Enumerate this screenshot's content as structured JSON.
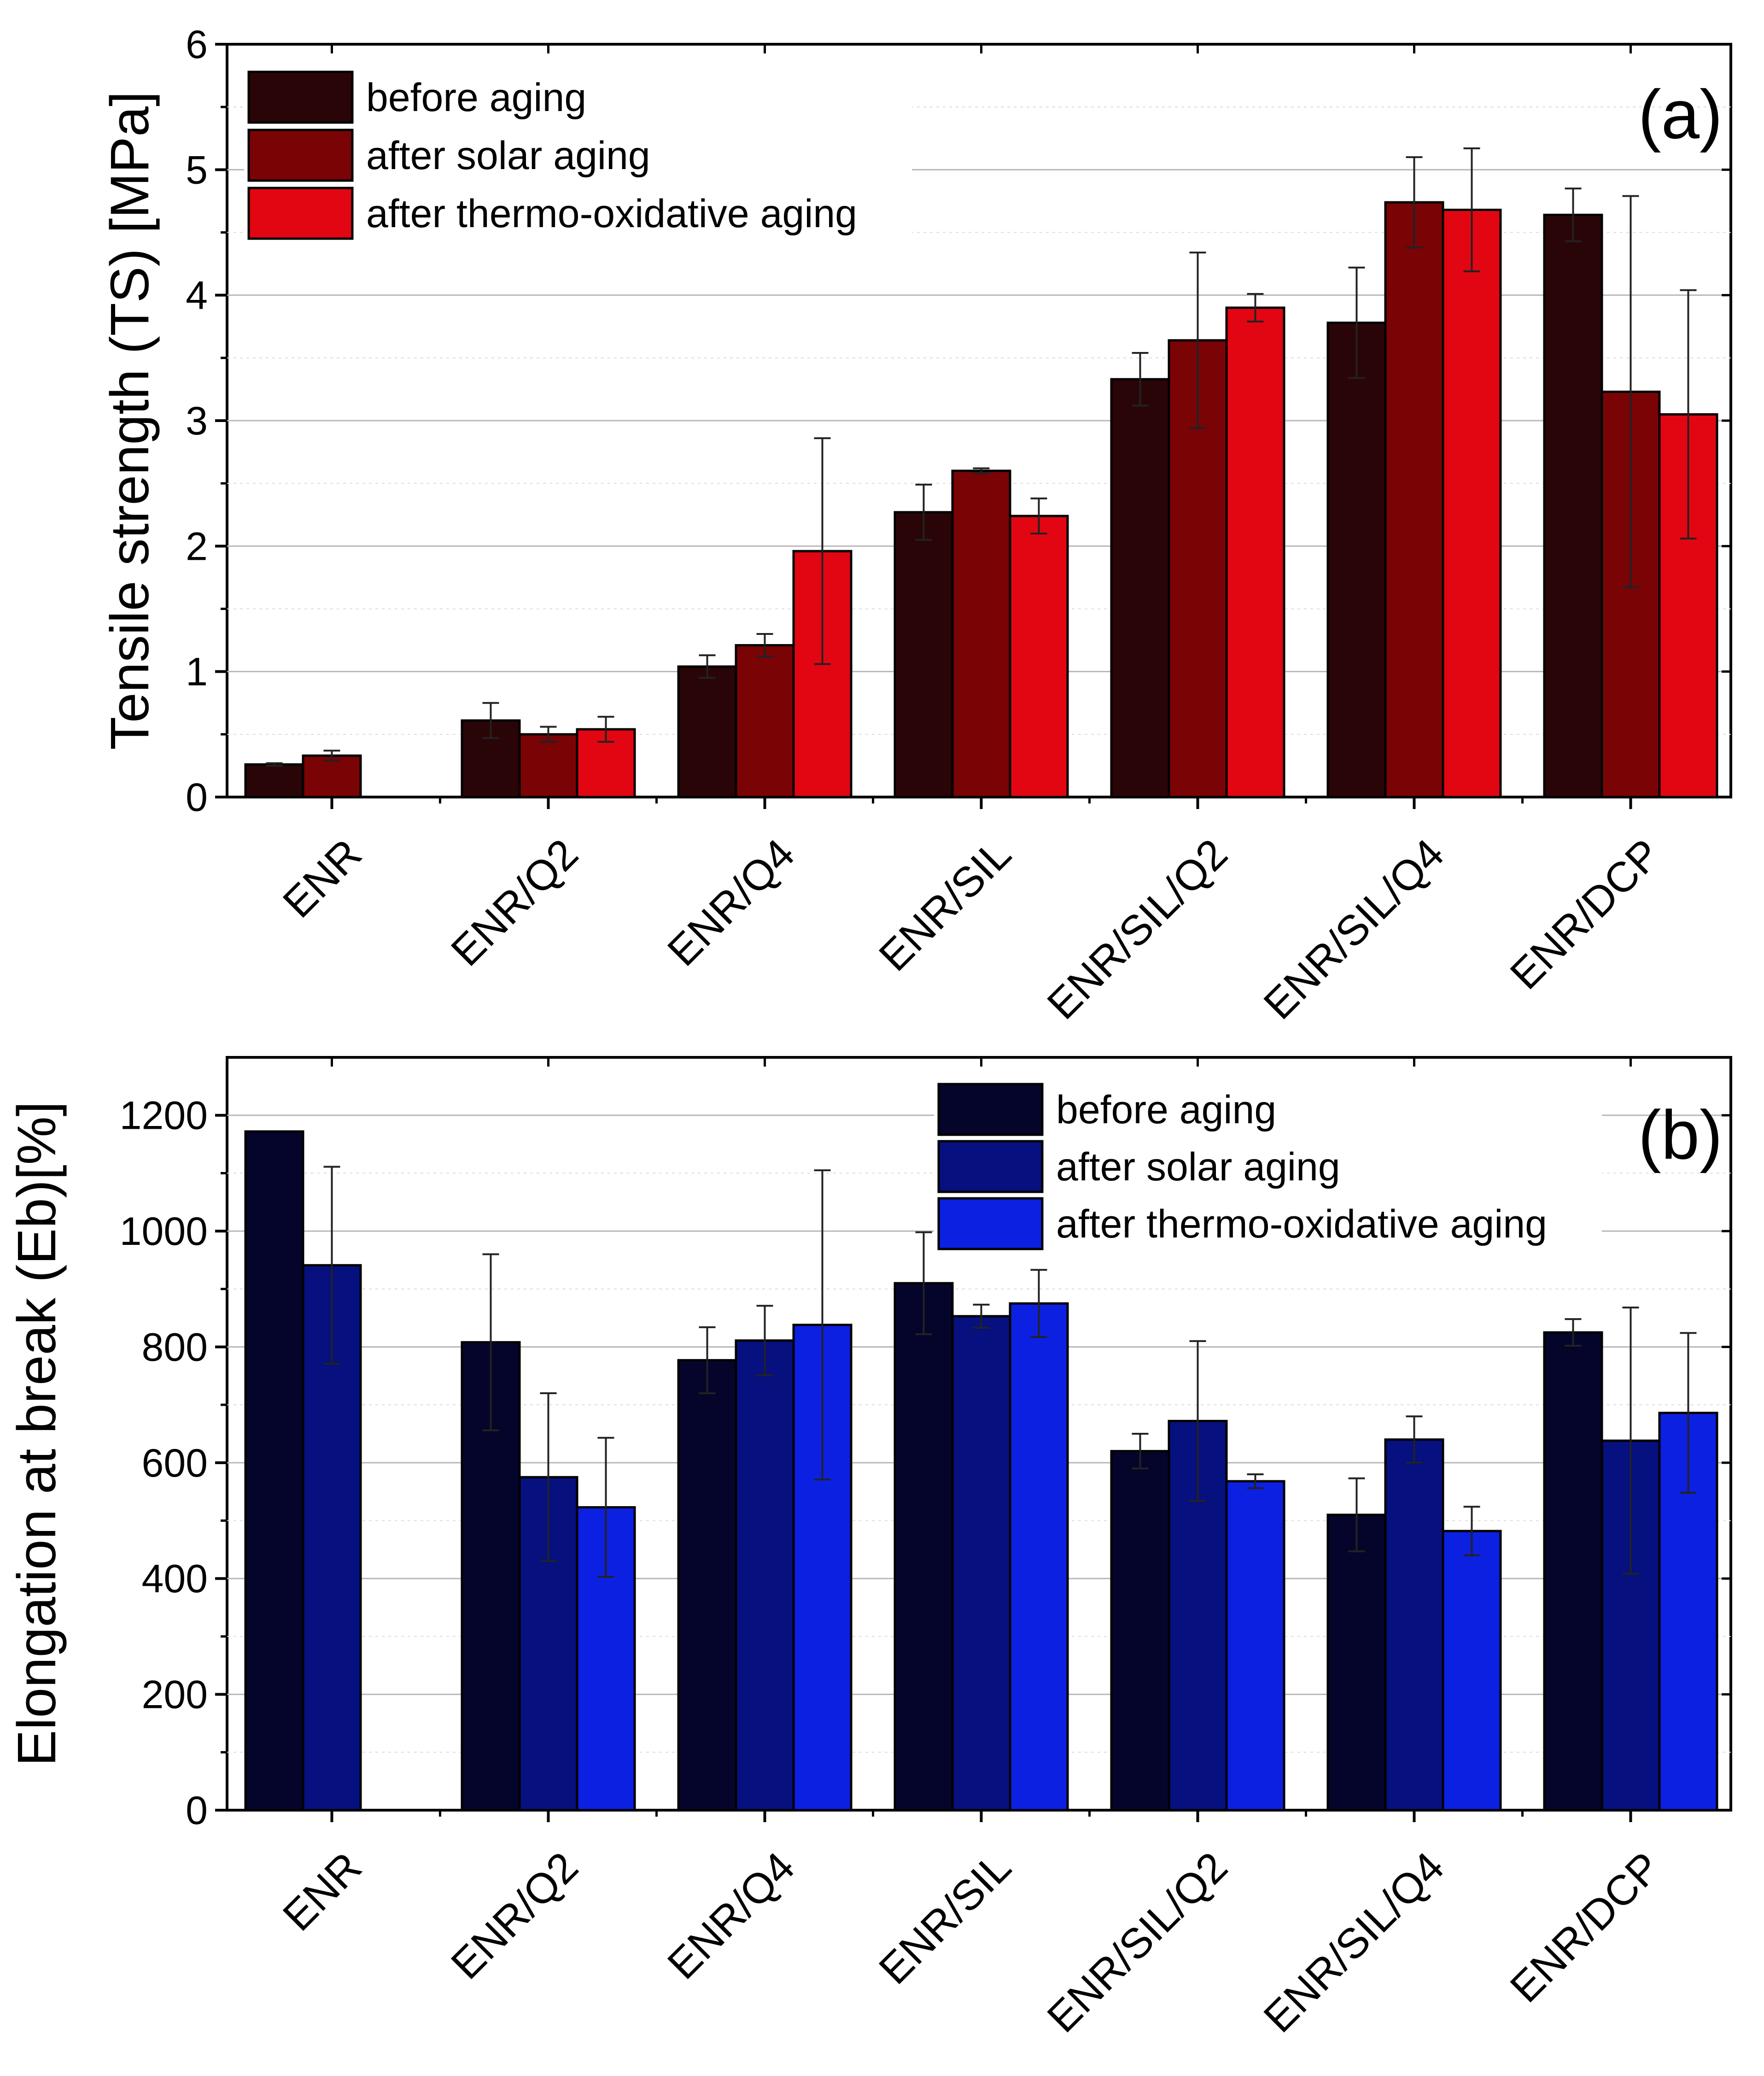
{
  "chart_data": [
    {
      "panel": "a",
      "type": "bar",
      "panel_label": "(a)",
      "ylabel": "Tensile strength (TS) [MPa]",
      "xlabel": "",
      "ylim": [
        0,
        6
      ],
      "yticks": [
        "0",
        "1",
        "2",
        "3",
        "4",
        "5",
        "6"
      ],
      "categories": [
        "ENR",
        "ENR/Q2",
        "ENR/Q4",
        "ENR/SIL",
        "ENR/SIL/Q2",
        "ENR/SIL/Q4",
        "ENR/DCP"
      ],
      "legend_position": "top-left",
      "series": [
        {
          "name": "before aging",
          "color": "#2a0507",
          "values": [
            0.26,
            0.61,
            1.04,
            2.27,
            3.33,
            3.78,
            4.64
          ],
          "errors": [
            0.01,
            0.14,
            0.09,
            0.22,
            0.21,
            0.44,
            0.21
          ]
        },
        {
          "name": "after solar aging",
          "color": "#7a0306",
          "values": [
            0.33,
            0.5,
            1.21,
            2.6,
            3.64,
            4.74,
            3.23
          ],
          "errors": [
            0.04,
            0.06,
            0.09,
            0.02,
            0.7,
            0.36,
            1.56
          ]
        },
        {
          "name": "after thermo-oxidative aging",
          "color": "#e20612",
          "values": [
            null,
            0.54,
            1.96,
            2.24,
            3.9,
            4.68,
            3.05
          ],
          "errors": [
            null,
            0.1,
            0.9,
            0.14,
            0.11,
            0.49,
            0.99
          ]
        }
      ]
    },
    {
      "panel": "b",
      "type": "bar",
      "panel_label": "(b)",
      "ylabel": "Elongation at break (Eb)[%]",
      "xlabel": "",
      "ylim": [
        0,
        1300
      ],
      "yticks": [
        "0",
        "200",
        "400",
        "600",
        "800",
        "1000",
        "1200"
      ],
      "categories": [
        "ENR",
        "ENR/Q2",
        "ENR/Q4",
        "ENR/SIL",
        "ENR/SIL/Q2",
        "ENR/SIL/Q4",
        "ENR/DCP"
      ],
      "legend_position": "top-right",
      "series": [
        {
          "name": "before aging",
          "color": "#05052b",
          "values": [
            1172,
            808,
            777,
            910,
            620,
            510,
            825
          ],
          "errors": [
            null,
            152,
            57,
            88,
            30,
            63,
            23
          ]
        },
        {
          "name": "after solar aging",
          "color": "#06107e",
          "values": [
            941,
            575,
            811,
            853,
            672,
            640,
            638
          ],
          "errors": [
            170,
            145,
            60,
            20,
            138,
            40,
            230
          ]
        },
        {
          "name": "after thermo-oxidative aging",
          "color": "#0c20e2",
          "values": [
            null,
            523,
            838,
            875,
            568,
            482,
            686
          ],
          "errors": [
            null,
            120,
            267,
            58,
            12,
            42,
            138
          ]
        }
      ]
    }
  ]
}
